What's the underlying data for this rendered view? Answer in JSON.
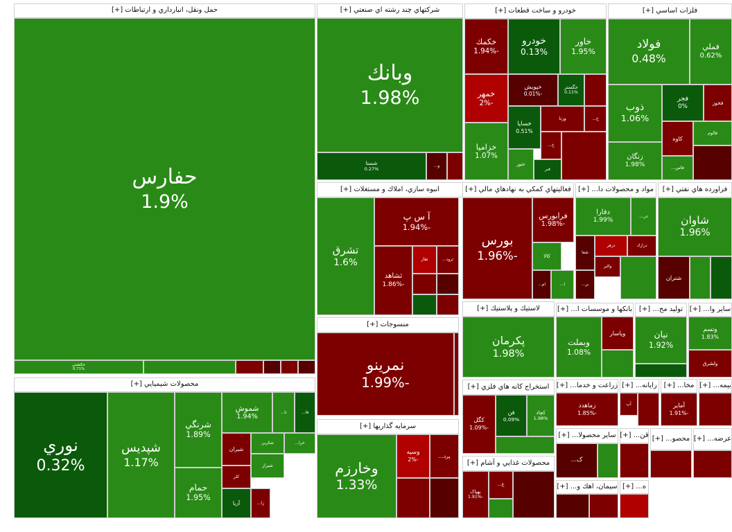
{
  "sectors": [
    {
      "title": "حمل ونقل، انبارداري و ارتباطات [+]",
      "tiles": [
        {
          "name": "حفارس",
          "change": "1.9%",
          "color": "#2a8a17"
        },
        {
          "name": "حکشتي",
          "change": "0.71%",
          "color": "#2a8a17"
        },
        {
          "color": "#2a8a17"
        },
        {
          "color": "#7d0000"
        },
        {
          "color": "#560000"
        },
        {
          "color": "#7d0000"
        },
        {
          "color": "#560000"
        }
      ]
    },
    {
      "title": "محصولات شيميايي [+]",
      "tiles": [
        {
          "name": "نوري",
          "change": "0.32%",
          "color": "#0b5a0b"
        },
        {
          "name": "شپديس",
          "change": "1.17%",
          "color": "#2a8a17"
        },
        {
          "name": "شرنگي",
          "change": "1.89%",
          "color": "#2a8a17"
        },
        {
          "name": "حمام",
          "change": "1.95%",
          "color": "#2a8a17"
        },
        {
          "name": "شموش",
          "change": "1.94%",
          "color": "#2a8a17"
        },
        {
          "name": "تا...",
          "color": "#2a8a17"
        },
        {
          "name": "فا...",
          "color": "#0b5a0b"
        },
        {
          "name": "شيران",
          "color": "#7d0000"
        },
        {
          "name": "شکربن",
          "color": "#2a8a17"
        },
        {
          "name": "خرا...",
          "color": "#2a8a17"
        },
        {
          "name": "کلر",
          "color": "#7d0000"
        },
        {
          "name": "شيراز",
          "color": "#2a8a17"
        },
        {
          "name": "آريا",
          "color": "#0b5a0b"
        },
        {
          "name": "زا...",
          "color": "#7d0000"
        }
      ]
    },
    {
      "title": "شركتهاي چند رشته اي صنعتي [+]",
      "tiles": [
        {
          "name": "وبانك",
          "change": "1.98%",
          "color": "#2a8a17"
        },
        {
          "name": "شستا",
          "change": "0.27%",
          "color": "#0b5a0b"
        },
        {
          "name": "و...",
          "color": "#560000"
        },
        {
          "color": "#7d0000"
        }
      ]
    },
    {
      "title": "انبوه سازي، املاك و مستغلات [+]",
      "tiles": [
        {
          "name": "تشرق",
          "change": "1.6%",
          "color": "#2a8a17"
        },
        {
          "name": "آ س پ",
          "change": "-1.94%",
          "color": "#7d0000"
        },
        {
          "name": "ثشاهد",
          "change": "-1.86%",
          "color": "#7d0000"
        },
        {
          "name": "ثفار",
          "color": "#b00000"
        },
        {
          "name": "ثرود...",
          "color": "#7d0000"
        },
        {
          "color": "#7d0000"
        },
        {
          "color": "#560000"
        },
        {
          "color": "#0b5a0b"
        },
        {
          "color": "#7d0000"
        }
      ]
    },
    {
      "title": "منسوجات [+]",
      "tiles": [
        {
          "name": "نمرينو",
          "change": "-1.99%",
          "color": "#7d0000"
        },
        {
          "color": "#7d0000"
        }
      ]
    },
    {
      "title": "سرمايه گذاريها [+]",
      "tiles": [
        {
          "name": "وخارزم",
          "change": "1.33%",
          "color": "#2a8a17"
        },
        {
          "name": "وسپه",
          "change": "-2%",
          "color": "#b00000"
        },
        {
          "name": "پرد...",
          "color": "#7d0000"
        },
        {
          "color": "#7d0000"
        },
        {
          "color": "#560000"
        }
      ]
    },
    {
      "title": "خودرو و ساخت قطعات [+]",
      "tiles": [
        {
          "name": "خکمك",
          "change": "-1.94%",
          "color": "#7d0000"
        },
        {
          "name": "خودرو",
          "change": "0.13%",
          "color": "#0b5a0b"
        },
        {
          "name": "خاور",
          "change": "1.95%",
          "color": "#2a8a17"
        },
        {
          "name": "خمهر",
          "change": "-2%",
          "color": "#b00000"
        },
        {
          "name": "خپويش",
          "change": "-0.01%",
          "color": "#560000"
        },
        {
          "name": "خگستر",
          "change": "0.11%",
          "color": "#0b5a0b"
        },
        {
          "name": "خزاميا",
          "change": "1.07%",
          "color": "#2a8a17"
        },
        {
          "name": "خساپا",
          "change": "0.51%",
          "color": "#0b5a0b"
        },
        {
          "name": "ورنا",
          "color": "#7d0000"
        },
        {
          "name": "خ...",
          "color": "#7d0000"
        },
        {
          "name": "ختور",
          "color": "#2a8a17"
        },
        {
          "name": "خ...",
          "color": "#7d0000"
        },
        {
          "name": "فنر",
          "color": "#0b5a0b"
        },
        {
          "color": "#7d0000"
        },
        {
          "color": "#7d0000"
        }
      ]
    },
    {
      "title": "فلزات اساسي [+]",
      "tiles": [
        {
          "name": "فولاد",
          "change": "0.48%",
          "color": "#2a8a17"
        },
        {
          "name": "فملي",
          "change": "0.62%",
          "color": "#2a8a17"
        },
        {
          "name": "ذوب",
          "change": "1.06%",
          "color": "#2a8a17"
        },
        {
          "name": "فجر",
          "change": "0%",
          "color": "#0b5a0b"
        },
        {
          "name": "فخوز",
          "color": "#7d0000"
        },
        {
          "name": "کاوه",
          "color": "#7d0000"
        },
        {
          "name": "فالوم",
          "color": "#2a8a17"
        },
        {
          "name": "زنگان",
          "change": "1.98%",
          "color": "#2a8a17"
        },
        {
          "name": "فاس...",
          "color": "#2a8a17"
        },
        {
          "color": "#560000"
        }
      ]
    },
    {
      "title": "فعاليتهاي كمكي به نهادهاي مالي [+]",
      "tiles": [
        {
          "name": "بورس",
          "change": "-1.96%",
          "color": "#7d0000"
        },
        {
          "name": "فرابورس",
          "change": "-1.98%",
          "color": "#7d0000"
        },
        {
          "name": "کالا",
          "color": "#2a8a17"
        },
        {
          "name": "ام...",
          "color": "#560000"
        },
        {
          "name": "ا...",
          "color": "#2a8a17"
        }
      ]
    },
    {
      "title": "مواد و محصولات دا... [+]",
      "tiles": [
        {
          "name": "دفارا",
          "change": "1.99%",
          "color": "#2a8a17"
        },
        {
          "name": "در...",
          "color": "#2a8a17"
        },
        {
          "name": "شفا",
          "color": "#560000"
        },
        {
          "name": "دزهر",
          "color": "#b00000"
        },
        {
          "name": "درازك",
          "color": "#7d0000"
        },
        {
          "name": "والبر",
          "color": "#7d0000"
        },
        {
          "name": "بر...",
          "color": "#560000"
        },
        {
          "color": "#2a8a17"
        }
      ]
    },
    {
      "title": "فراورده هاي نفتي [+]",
      "tiles": [
        {
          "name": "شاوان",
          "change": "1.96%",
          "color": "#2a8a17"
        },
        {
          "name": "شتران",
          "color": "#560000"
        },
        {
          "color": "#2a8a17"
        },
        {
          "color": "#0b5a0b"
        }
      ]
    },
    {
      "title": "لاستيك و پلاستيك [+]",
      "tiles": [
        {
          "name": "پكرمان",
          "change": "1.98%",
          "color": "#2a8a17"
        }
      ]
    },
    {
      "title": "استخراج كانه هاي فلزي [+]",
      "tiles": [
        {
          "name": "کگل",
          "change": "-1.09%",
          "color": "#7d0000"
        },
        {
          "name": "فن",
          "change": "0.09%",
          "color": "#0b5a0b"
        },
        {
          "name": "کچاد",
          "change": "1.98%",
          "color": "#2a8a17"
        },
        {
          "color": "#2a8a17"
        }
      ]
    },
    {
      "title": "محصولات غذايي و آشام [+]",
      "tiles": [
        {
          "name": "بهپاک",
          "change": "-1.91%",
          "color": "#7d0000"
        },
        {
          "name": "غ...",
          "color": "#7d0000"
        },
        {
          "color": "#560000"
        },
        {
          "color": "#2a8a17"
        }
      ]
    },
    {
      "title": "بانکها و موسسات ا... [+]",
      "tiles": [
        {
          "name": "وبملت",
          "change": "1.08%",
          "color": "#2a8a17"
        },
        {
          "name": "وپاسار",
          "color": "#7d0000"
        },
        {
          "color": "#2a8a17"
        }
      ]
    },
    {
      "title": "توليد مح... [+]",
      "tiles": [
        {
          "name": "نيان",
          "change": "1.92%",
          "color": "#2a8a17"
        },
        {
          "color": "#0b5a0b"
        }
      ]
    },
    {
      "title": "ساير وا... [+]",
      "tiles": [
        {
          "name": "وتسم",
          "change": "1.83%",
          "color": "#2a8a17"
        },
        {
          "name": "ولشرق",
          "color": "#7d0000"
        }
      ]
    },
    {
      "title": "زراعت و خدما... [+]",
      "tiles": [
        {
          "name": "زماهدد",
          "change": "-1.85%",
          "color": "#7d0000"
        }
      ]
    },
    {
      "title": "رايانه... [+]",
      "tiles": [
        {
          "name": "آپ",
          "color": "#7d0000"
        },
        {
          "color": "#7d0000"
        }
      ]
    },
    {
      "title": "مخا... [+]",
      "tiles": [
        {
          "name": "آماير",
          "change": "-1.91%",
          "color": "#7d0000"
        }
      ]
    },
    {
      "title": "بيمه... [+]",
      "tiles": [
        {
          "color": "#7d0000"
        }
      ]
    },
    {
      "title": "ساير محصولا... [+]",
      "tiles": [
        {
          "name": "ک...",
          "color": "#560000"
        },
        {
          "color": "#2a8a17"
        }
      ]
    },
    {
      "title": "قن... [+]",
      "tiles": [
        {
          "color": "#7d0000"
        }
      ]
    },
    {
      "title": "محصو... [+]",
      "tiles": [
        {
          "color": "#7d0000"
        }
      ]
    },
    {
      "title": "عرضه... [+]",
      "tiles": [
        {
          "color": "#7d0000"
        }
      ]
    },
    {
      "title": "سيمان، اهك و... [+]",
      "tiles": [
        {
          "color": "#560000"
        },
        {
          "color": "#7d0000"
        }
      ]
    },
    {
      "title": "ه... [+]",
      "tiles": [
        {
          "color": "#b00000"
        }
      ]
    }
  ]
}
